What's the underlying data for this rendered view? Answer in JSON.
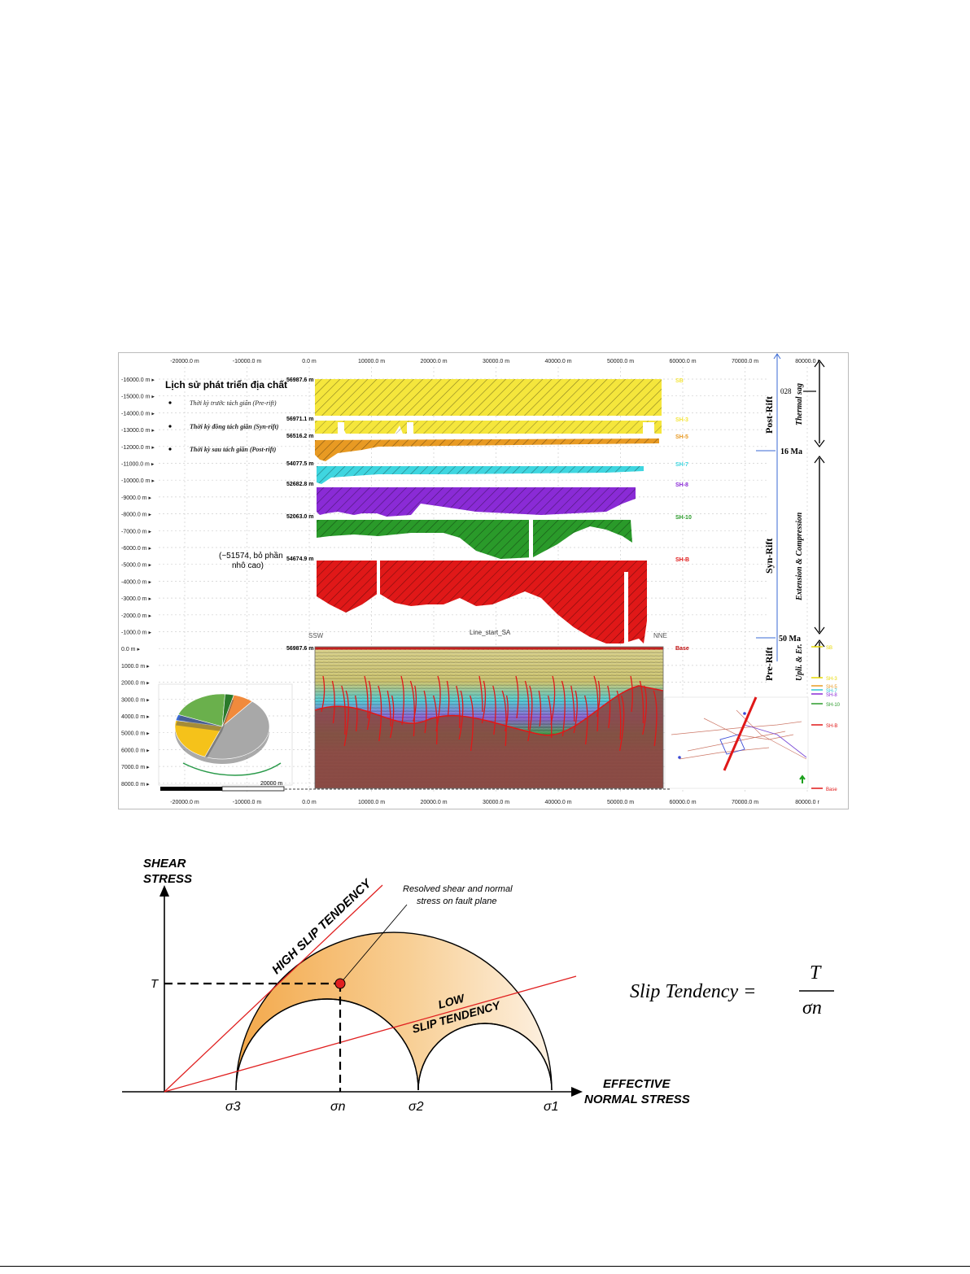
{
  "figure1": {
    "top_axis_ticks": [
      "-20000.0 m",
      "-10000.0 m",
      "0.0 m",
      "10000.0 m",
      "20000.0 m",
      "30000.0 m",
      "40000.0 m",
      "50000.0 m",
      "60000.0 m",
      "70000.0 m",
      "80000.0 r"
    ],
    "bottom_axis_ticks": [
      "-20000.0 m",
      "-10000.0 m",
      "0.0 m",
      "10000.0 m",
      "20000.0 m",
      "30000.0 m",
      "40000.0 m",
      "50000.0 m",
      "60000.0 m",
      "70000.0 m",
      "80000.0 r"
    ],
    "left_axis_ticks": [
      "-16000.0 m",
      "-15000.0 m",
      "-14000.0 m",
      "-13000.0 m",
      "-12000.0 m",
      "-11000.0 m",
      "-10000.0 m",
      "-9000.0 m",
      "-8000.0 m",
      "-7000.0 m",
      "-6000.0 m",
      "-5000.0 m",
      "-4000.0 m",
      "-3000.0 m",
      "-2000.0 m",
      "-1000.0 m",
      "0.0 m",
      "1000.0 m",
      "2000.0 m",
      "3000.0 m",
      "4000.0 m",
      "5000.0 m",
      "6000.0 m",
      "7000.0 m",
      "8000.0 m"
    ],
    "legend": {
      "title": "Lịch sử phát triển địa chất",
      "items": [
        "Thời kỳ trước tách giãn (Pre-rift)",
        "Thời kỳ đồng tách giãn (Syn-rift)",
        "Thời kỳ sau tách giãn (Post-rift)"
      ]
    },
    "layers": [
      {
        "value": "56987.6 m",
        "name": "SB",
        "color": "#f5e63c"
      },
      {
        "value": "56971.1 m",
        "name": "SH-3",
        "color": "#f5e63c"
      },
      {
        "value": "56516.2 m",
        "name": "SH-5",
        "color": "#e89a23"
      },
      {
        "value": "54077.5 m",
        "name": "SH-7",
        "color": "#3fd6e0"
      },
      {
        "value": "52682.8 m",
        "name": "SH-8",
        "color": "#8a2bd6"
      },
      {
        "value": "52063.0 m",
        "name": "SH-10",
        "color": "#2a9a2a"
      },
      {
        "value": "54674.9 m",
        "name": "SH-B",
        "color": "#e01818"
      }
    ],
    "note": "(~51574, bỏ phần\nnhô cao)",
    "section": {
      "left_label": "SSW",
      "right_label": "NNE",
      "line_label": "Line_start_SA",
      "top_value": "56987.6 m",
      "base_label": "Base"
    },
    "scale_label": "20000 m",
    "stage_labels": {
      "post_rift": "Post-Rift",
      "thermal_sag": "Thermal sag",
      "syn_rift": "Syn-Rift",
      "ext_comp": "Extension & Compression",
      "pre_rift": "Pre-Rift",
      "upl_er": "Upli. & Er."
    },
    "ages": {
      "a16": "16 Ma",
      "a50": "50 Ma",
      "top_num": "028"
    },
    "right_legend": [
      "SB",
      "SH-3",
      "SH-5",
      "SH-7",
      "SH-8",
      "SH-10",
      "SH-B",
      "Base"
    ],
    "right_legend_colors": [
      "#e6d800",
      "#e6d800",
      "#e89a23",
      "#2fc6d0",
      "#8a2bd6",
      "#2a9a2a",
      "#e01818",
      "#e01818"
    ],
    "pie_values": [
      0.07,
      0.45,
      0.22,
      0.03,
      0.2,
      0.03
    ],
    "pie_colors": [
      "#f08a3c",
      "#a8a8a8",
      "#f5c21a",
      "#3a6ad4",
      "#6ab04c",
      "#2a7a2a"
    ]
  },
  "figure2": {
    "y_axis_label_1": "SHEAR",
    "y_axis_label_2": "STRESS",
    "x_axis_label_1": "EFFECTIVE",
    "x_axis_label_2": "NORMAL STRESS",
    "high_label": "HIGH SLIP TENDENCY",
    "low_label_1": "LOW",
    "low_label_2": "SLIP TENDENCY",
    "callout_1": "Resolved shear and normal",
    "callout_2": "stress on fault plane",
    "tau": "T",
    "sigma3": "σ3",
    "sigman": "σn",
    "sigma2": "σ2",
    "sigma1": "σ1",
    "formula_lhs": "Slip Tendency =",
    "formula_num": "T",
    "formula_den": "σn"
  }
}
